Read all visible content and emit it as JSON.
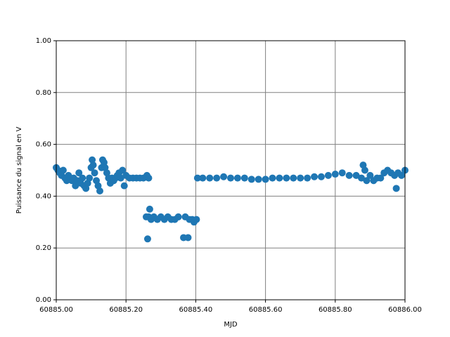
{
  "chart_data": {
    "type": "scatter",
    "xlabel": "MJD",
    "ylabel": "Puissance du signal en V",
    "color": "#1f77b4",
    "grid": true,
    "xlim": [
      60885.0,
      60886.0
    ],
    "xticks": [
      {
        "value": 60885.0,
        "label": "60885.00"
      },
      {
        "value": 60885.2,
        "label": "60885.20"
      },
      {
        "value": 60885.4,
        "label": "60885.40"
      },
      {
        "value": 60885.6,
        "label": "60885.60"
      },
      {
        "value": 60885.8,
        "label": "60885.80"
      },
      {
        "value": 60886.0,
        "label": "60886.00"
      }
    ],
    "ylim": [
      0,
      1
    ],
    "yticks": [
      {
        "value": 0,
        "label": "0.00"
      },
      {
        "value": 0.2,
        "label": "0.20"
      },
      {
        "value": 0.4,
        "label": "0.40"
      },
      {
        "value": 0.6,
        "label": "0.60"
      },
      {
        "value": 0.8,
        "label": "0.80"
      },
      {
        "value": 1,
        "label": "1.00"
      }
    ],
    "x": [
      60885.0,
      60885.005,
      60885.01,
      60885.015,
      60885.02,
      60885.025,
      60885.03,
      60885.035,
      60885.04,
      60885.045,
      60885.05,
      60885.055,
      60885.06,
      60885.065,
      60885.07,
      60885.075,
      60885.08,
      60885.085,
      60885.09,
      60885.095,
      60885.1,
      60885.103,
      60885.106,
      60885.11,
      60885.115,
      60885.12,
      60885.125,
      60885.13,
      60885.133,
      60885.137,
      60885.14,
      60885.145,
      60885.15,
      60885.155,
      60885.16,
      60885.165,
      60885.17,
      60885.175,
      60885.18,
      60885.185,
      60885.19,
      60885.195,
      60885.2,
      60885.21,
      60885.22,
      60885.23,
      60885.24,
      60885.25,
      60885.26,
      60885.265,
      60885.258,
      60885.262,
      60885.265,
      60885.268,
      60885.272,
      60885.28,
      60885.29,
      60885.3,
      60885.31,
      60885.32,
      60885.33,
      60885.34,
      60885.35,
      60885.365,
      60885.37,
      60885.378,
      60885.382,
      60885.39,
      60885.395,
      60885.402,
      60885.405,
      60885.42,
      60885.44,
      60885.46,
      60885.48,
      60885.5,
      60885.52,
      60885.54,
      60885.56,
      60885.58,
      60885.6,
      60885.62,
      60885.64,
      60885.66,
      60885.68,
      60885.7,
      60885.72,
      60885.74,
      60885.76,
      60885.78,
      60885.8,
      60885.82,
      60885.84,
      60885.86,
      60885.875,
      60885.88,
      60885.885,
      60885.89,
      60885.9,
      60885.91,
      60885.92,
      60885.93,
      60885.94,
      60885.95,
      60885.96,
      60885.97,
      60885.975,
      60885.98,
      60885.99,
      60886.0
    ],
    "values": [
      0.51,
      0.5,
      0.49,
      0.48,
      0.5,
      0.47,
      0.46,
      0.48,
      0.47,
      0.46,
      0.47,
      0.44,
      0.46,
      0.49,
      0.45,
      0.47,
      0.44,
      0.43,
      0.45,
      0.47,
      0.51,
      0.54,
      0.52,
      0.49,
      0.46,
      0.44,
      0.42,
      0.51,
      0.54,
      0.53,
      0.51,
      0.49,
      0.47,
      0.45,
      0.47,
      0.46,
      0.47,
      0.48,
      0.49,
      0.47,
      0.5,
      0.44,
      0.48,
      0.47,
      0.47,
      0.47,
      0.47,
      0.47,
      0.48,
      0.47,
      0.32,
      0.235,
      0.32,
      0.35,
      0.31,
      0.32,
      0.31,
      0.32,
      0.31,
      0.32,
      0.31,
      0.31,
      0.32,
      0.24,
      0.32,
      0.24,
      0.31,
      0.31,
      0.3,
      0.31,
      0.47,
      0.47,
      0.47,
      0.47,
      0.475,
      0.47,
      0.47,
      0.47,
      0.465,
      0.465,
      0.465,
      0.47,
      0.47,
      0.47,
      0.47,
      0.47,
      0.47,
      0.475,
      0.475,
      0.48,
      0.485,
      0.49,
      0.48,
      0.48,
      0.47,
      0.52,
      0.5,
      0.46,
      0.48,
      0.46,
      0.47,
      0.47,
      0.49,
      0.5,
      0.49,
      0.48,
      0.43,
      0.49,
      0.48,
      0.5
    ]
  }
}
